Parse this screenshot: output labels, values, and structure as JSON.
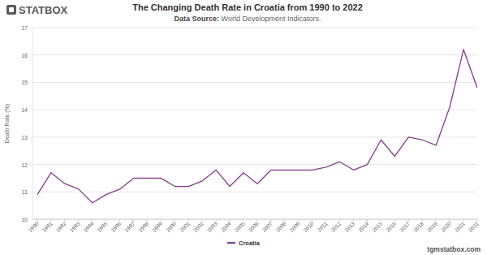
{
  "header": {
    "logo": "STATBOX"
  },
  "chart_data": {
    "type": "line",
    "title": "The Changing Death Rate in Croatia from 1990 to 2022",
    "subtitle": "Data Source: World Development Indicators.",
    "y_label": "Death Rate (%)",
    "categories": [
      "1990",
      "1991",
      "1992",
      "1993",
      "1994",
      "1995",
      "1996",
      "1997",
      "1998",
      "1999",
      "2000",
      "2001",
      "2002",
      "2003",
      "2004",
      "2005",
      "2006",
      "2007",
      "2008",
      "2009",
      "2010",
      "2011",
      "2012",
      "2013",
      "2014",
      "2015",
      "2016",
      "2017",
      "2018",
      "2019",
      "2020",
      "2021",
      "2022"
    ],
    "series": [
      {
        "name": "Croatia",
        "color": "#843c8c",
        "values": [
          10.9,
          11.7,
          11.3,
          11.1,
          10.6,
          10.9,
          11.1,
          11.5,
          11.5,
          11.5,
          11.2,
          11.2,
          11.4,
          11.8,
          11.2,
          11.7,
          11.3,
          11.8,
          11.8,
          11.8,
          11.8,
          11.9,
          12.1,
          11.8,
          12.0,
          12.9,
          12.3,
          13.0,
          12.9,
          12.7,
          14.1,
          16.2,
          14.8
        ]
      }
    ],
    "ylim": [
      10,
      17
    ],
    "yticks": [
      10,
      11,
      12,
      13,
      14,
      15,
      16,
      17
    ],
    "grid": true,
    "legend": "bottom"
  },
  "footer": {
    "site": "tgmstatbox.com"
  }
}
